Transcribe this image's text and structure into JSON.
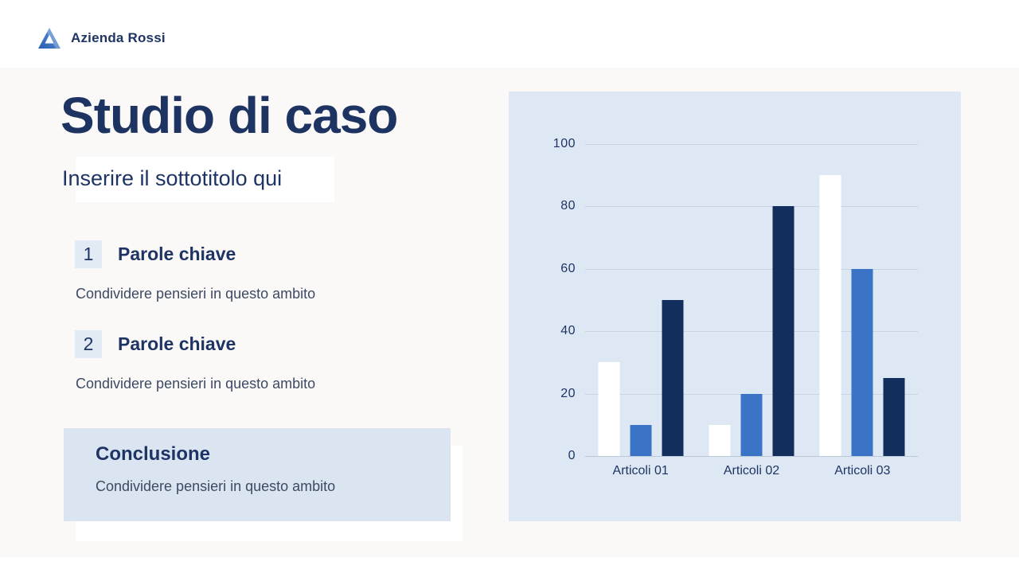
{
  "brand": {
    "name": "Azienda Rossi",
    "logo_icon": "triangle-a-logo",
    "logo_color": "#3b74c6"
  },
  "header": {
    "title": "Studio di caso",
    "subtitle": "Inserire il sottotitolo qui"
  },
  "keypoints": [
    {
      "number": "1",
      "title": "Parole chiave",
      "description": "Condividere pensieri in questo ambito"
    },
    {
      "number": "2",
      "title": "Parole chiave",
      "description": "Condividere pensieri in questo ambito"
    }
  ],
  "conclusion": {
    "title": "Conclusione",
    "description": "Condividere pensieri in questo ambito"
  },
  "chart_data": {
    "type": "bar",
    "title": "",
    "xlabel": "",
    "ylabel": "",
    "categories": [
      "Articoli 01",
      "Articoli 02",
      "Articoli 03"
    ],
    "series": [
      {
        "name": "series-white",
        "color": "#ffffff",
        "values": [
          30,
          10,
          90
        ]
      },
      {
        "name": "series-blue",
        "color": "#3b74c6",
        "values": [
          10,
          20,
          60
        ]
      },
      {
        "name": "series-navy",
        "color": "#112e5c",
        "values": [
          50,
          80,
          25
        ]
      }
    ],
    "yticks": [
      0,
      20,
      40,
      60,
      80,
      100
    ],
    "ylim": [
      0,
      100
    ],
    "grid": true,
    "legend_position": "none",
    "panel_bg": "#dee8f4"
  },
  "colors": {
    "accent_navy": "#1e3464",
    "accent_blue": "#3b74c6",
    "badge_bg": "#e2eaf4",
    "conclusion_bg": "#dbe5f2",
    "chart_bg": "#dee8f4"
  }
}
